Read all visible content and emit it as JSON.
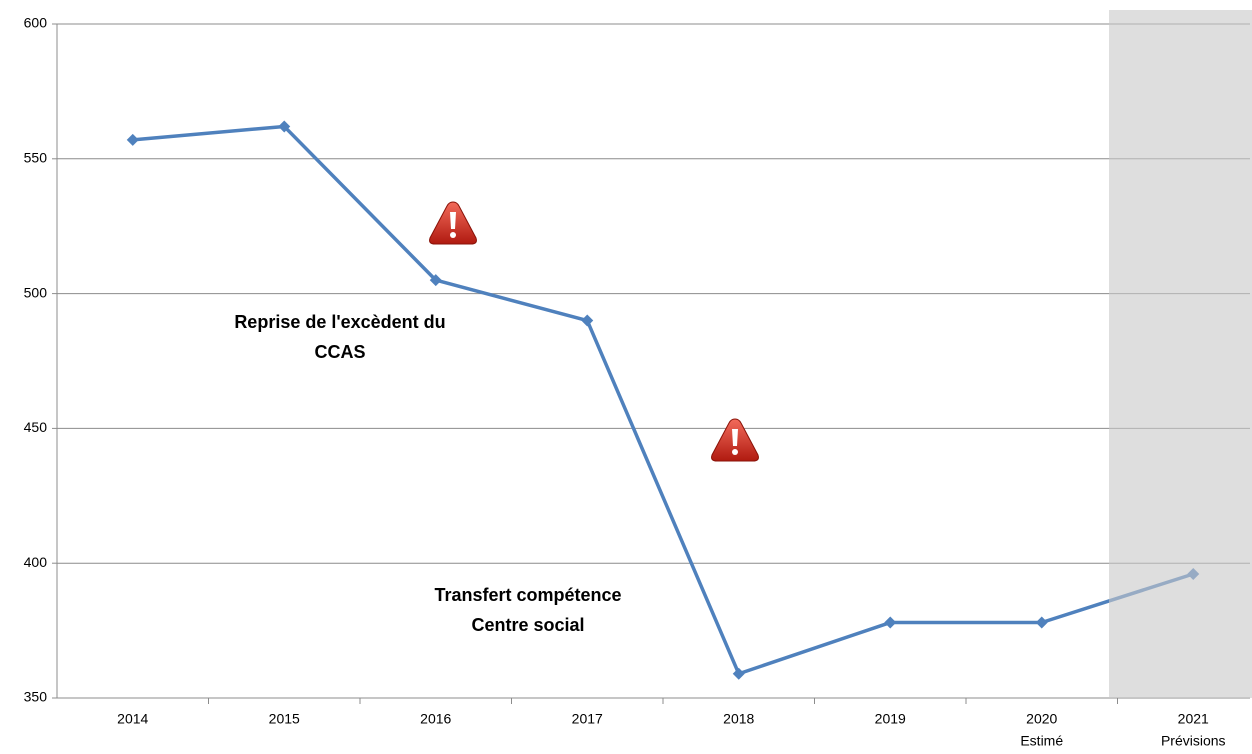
{
  "chart_data": {
    "type": "line",
    "categories": [
      "2014",
      "2015",
      "2016",
      "2017",
      "2018",
      "2019",
      "2020",
      "2021"
    ],
    "category_notes": [
      null,
      null,
      null,
      null,
      null,
      null,
      "Estimé",
      "Prévisions"
    ],
    "values": [
      557,
      562,
      505,
      490,
      359,
      378,
      378,
      396
    ],
    "color": "#4f81bd",
    "ylim": [
      350,
      600
    ],
    "yticks": [
      350,
      400,
      450,
      500,
      550,
      600
    ],
    "grid": true,
    "annotations": [
      {
        "lines": [
          "Reprise de l'excèdent du",
          "CCAS"
        ]
      },
      {
        "lines": [
          "Transfert compétence",
          "Centre social"
        ]
      }
    ]
  }
}
